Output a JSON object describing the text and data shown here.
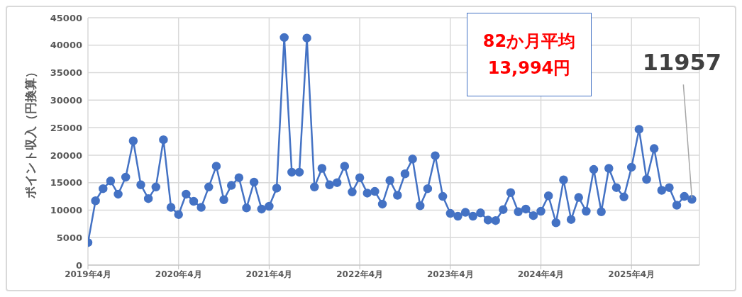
{
  "chart_data": {
    "type": "line",
    "ylabel": "ポイント収入（円換算）",
    "x": [
      "2019-04",
      "2019-05",
      "2019-06",
      "2019-07",
      "2019-08",
      "2019-09",
      "2019-10",
      "2019-11",
      "2019-12",
      "2020-01",
      "2020-02",
      "2020-03",
      "2020-04",
      "2020-05",
      "2020-06",
      "2020-07",
      "2020-08",
      "2020-09",
      "2020-10",
      "2020-11",
      "2020-12",
      "2021-01",
      "2021-02",
      "2021-03",
      "2021-04",
      "2021-05",
      "2021-06",
      "2021-07",
      "2021-08",
      "2021-09",
      "2021-10",
      "2021-11",
      "2021-12",
      "2022-01",
      "2022-02",
      "2022-03",
      "2022-04",
      "2022-05",
      "2022-06",
      "2022-07",
      "2022-08",
      "2022-09",
      "2022-10",
      "2022-11",
      "2022-12",
      "2023-01",
      "2023-02",
      "2023-03",
      "2023-04",
      "2023-05",
      "2023-06",
      "2023-07",
      "2023-08",
      "2023-09",
      "2023-10",
      "2023-11",
      "2023-12",
      "2024-01",
      "2024-02",
      "2024-03",
      "2024-04",
      "2024-05",
      "2024-06",
      "2024-07",
      "2024-08",
      "2024-09",
      "2024-10",
      "2024-11",
      "2024-12",
      "2025-01",
      "2025-02",
      "2025-03",
      "2025-04",
      "2025-05",
      "2025-06",
      "2025-07",
      "2025-08",
      "2025-09",
      "2025-10",
      "2025-11",
      "2025-12"
    ],
    "series": [
      {
        "color": "#4472c4",
        "values": [
          4100,
          11700,
          13900,
          15300,
          12900,
          16000,
          22600,
          14600,
          12100,
          14200,
          22800,
          10500,
          9200,
          12900,
          11600,
          10500,
          14200,
          18000,
          11900,
          14500,
          15900,
          10400,
          15100,
          10200,
          10700,
          14000,
          41400,
          16900,
          16900,
          41300,
          14200,
          17600,
          14600,
          15000,
          18000,
          13300,
          15900,
          13100,
          13400,
          11100,
          15400,
          12700,
          16600,
          19300,
          10800,
          13900,
          19900,
          12500,
          9400,
          8900,
          9600,
          8900,
          9500,
          8200,
          8100,
          10100,
          13200,
          9700,
          10200,
          9000,
          9800,
          12600,
          7700,
          15500,
          8300,
          12300,
          9800,
          17400,
          9700,
          17600,
          14100,
          12400,
          17800,
          24700,
          15600,
          21200,
          13600,
          14100,
          10900,
          12500,
          11957
        ]
      }
    ],
    "xlim": [
      "2019-04",
      "2026-01"
    ],
    "xticks": [
      {
        "value": "2019-04",
        "label": "2019年4月"
      },
      {
        "value": "2020-04",
        "label": "2020年4月"
      },
      {
        "value": "2021-04",
        "label": "2021年4月"
      },
      {
        "value": "2022-04",
        "label": "2022年4月"
      },
      {
        "value": "2023-04",
        "label": "2023年4月"
      },
      {
        "value": "2024-04",
        "label": "2024年4月"
      },
      {
        "value": "2025-04",
        "label": "2025年4月"
      }
    ],
    "ylim": [
      0,
      45000
    ],
    "yticks": [
      0,
      5000,
      10000,
      15000,
      20000,
      25000,
      30000,
      35000,
      40000,
      45000
    ],
    "grid": true,
    "legend": false,
    "marker": "circle",
    "line_style": "solid",
    "annotations": [
      "82か月平均\n13,994円",
      {
        "text": "11957",
        "x": "2025-12",
        "y": 11957
      }
    ]
  }
}
